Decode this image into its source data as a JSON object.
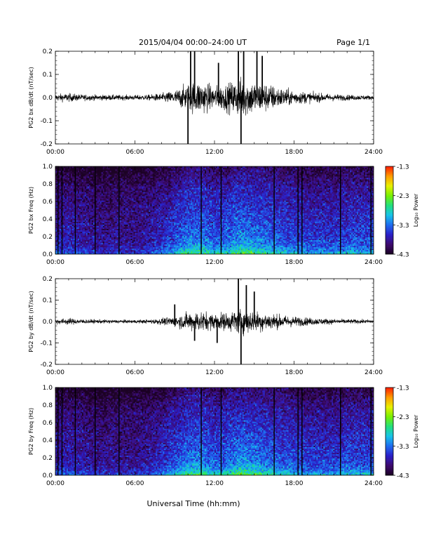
{
  "header": {
    "title": "2015/04/04   00:00–24:00 UT",
    "page": "Page 1/1"
  },
  "footer": {
    "xlabel": "Universal Time (hh:mm)"
  },
  "colors": {
    "trace": "#000000",
    "colormap": [
      "#1a0022",
      "#3d0a6e",
      "#2a1fc8",
      "#1e6cf0",
      "#17c3e8",
      "#22e07a",
      "#78f000",
      "#e8f000",
      "#ff9a00",
      "#ff1a00"
    ]
  },
  "chart_data": [
    {
      "type": "line",
      "ylabel": "PG2 bx dB/dt (nT/sec)",
      "xlim": [
        0,
        24
      ],
      "ylim": [
        -0.2,
        0.2
      ],
      "x_ticks": [
        "00:00",
        "06:00",
        "12:00",
        "18:00",
        "24:00"
      ],
      "y_ticks": [
        "-0.2",
        "-0.1",
        "0.0",
        "0.1",
        "0.2"
      ],
      "envelope": {
        "x_hours": [
          0,
          1,
          2,
          3,
          4,
          5,
          6,
          7,
          8,
          9,
          10,
          11,
          12,
          13,
          14,
          15,
          16,
          17,
          18,
          19,
          20,
          21,
          22,
          23,
          24
        ],
        "amplitude": [
          0.025,
          0.03,
          0.022,
          0.02,
          0.02,
          0.018,
          0.018,
          0.02,
          0.03,
          0.05,
          0.1,
          0.12,
          0.08,
          0.1,
          0.14,
          0.12,
          0.1,
          0.07,
          0.05,
          0.04,
          0.03,
          0.025,
          0.02,
          0.018,
          0.015
        ]
      },
      "spikes": [
        {
          "x": 10.0,
          "y": -0.21
        },
        {
          "x": 10.2,
          "y": 0.21
        },
        {
          "x": 10.5,
          "y": 0.21
        },
        {
          "x": 12.3,
          "y": 0.15
        },
        {
          "x": 13.8,
          "y": 0.21
        },
        {
          "x": 14.0,
          "y": -0.21
        },
        {
          "x": 14.2,
          "y": 0.21
        },
        {
          "x": 15.2,
          "y": 0.21
        },
        {
          "x": 15.6,
          "y": 0.18
        }
      ]
    },
    {
      "type": "heatmap",
      "ylabel": "PG2 bx Freq (Hz)",
      "xlim": [
        0,
        24
      ],
      "ylim": [
        0.0,
        1.0
      ],
      "x_ticks": [
        "00:00",
        "06:00",
        "12:00",
        "18:00",
        "24:00"
      ],
      "y_ticks": [
        "0.0",
        "0.2",
        "0.4",
        "0.6",
        "0.8",
        "1.0"
      ],
      "colorbar": {
        "label": "Log₁₀ Power",
        "range": [
          -4.3,
          -1.3
        ],
        "ticks": [
          "-1.3",
          "-2.3",
          "-3.3",
          "-4.3"
        ]
      },
      "activity": [
        0.35,
        0.4,
        0.35,
        0.3,
        0.3,
        0.3,
        0.3,
        0.35,
        0.45,
        0.55,
        0.7,
        0.7,
        0.6,
        0.65,
        0.75,
        0.7,
        0.65,
        0.6,
        0.55,
        0.5,
        0.5,
        0.5,
        0.55,
        0.55,
        0.55
      ],
      "dark_lines_hours": [
        0.2,
        0.5,
        1.5,
        3.0,
        4.8,
        11.0,
        12.5,
        16.5,
        18.3,
        18.6,
        21.5,
        23.8
      ]
    },
    {
      "type": "line",
      "ylabel": "PG2 by dB/dt (nT/sec)",
      "xlim": [
        0,
        24
      ],
      "ylim": [
        -0.2,
        0.2
      ],
      "x_ticks": [
        "00:00",
        "06:00",
        "12:00",
        "18:00",
        "24:00"
      ],
      "y_ticks": [
        "-0.2",
        "-0.1",
        "0.0",
        "0.1",
        "0.2"
      ],
      "envelope": {
        "x_hours": [
          0,
          1,
          2,
          3,
          4,
          5,
          6,
          7,
          8,
          9,
          10,
          11,
          12,
          13,
          14,
          15,
          16,
          17,
          18,
          19,
          20,
          21,
          22,
          23,
          24
        ],
        "amplitude": [
          0.02,
          0.025,
          0.018,
          0.015,
          0.015,
          0.013,
          0.013,
          0.015,
          0.025,
          0.04,
          0.07,
          0.08,
          0.06,
          0.07,
          0.1,
          0.08,
          0.07,
          0.05,
          0.04,
          0.03,
          0.025,
          0.02,
          0.018,
          0.016,
          0.014
        ]
      },
      "spikes": [
        {
          "x": 9.0,
          "y": 0.08
        },
        {
          "x": 10.5,
          "y": -0.09
        },
        {
          "x": 12.2,
          "y": -0.1
        },
        {
          "x": 13.8,
          "y": 0.21
        },
        {
          "x": 14.0,
          "y": -0.21
        },
        {
          "x": 14.4,
          "y": 0.17
        },
        {
          "x": 15.0,
          "y": 0.14
        }
      ]
    },
    {
      "type": "heatmap",
      "ylabel": "PG2 by Freq (Hz)",
      "xlim": [
        0,
        24
      ],
      "ylim": [
        0.0,
        1.0
      ],
      "x_ticks": [
        "00:00",
        "06:00",
        "12:00",
        "18:00",
        "24:00"
      ],
      "y_ticks": [
        "0.0",
        "0.2",
        "0.4",
        "0.6",
        "0.8",
        "1.0"
      ],
      "colorbar": {
        "label": "Log₁₀ Power",
        "range": [
          -4.3,
          -1.3
        ],
        "ticks": [
          "-1.3",
          "-2.3",
          "-3.3",
          "-4.3"
        ]
      },
      "activity": [
        0.35,
        0.4,
        0.35,
        0.3,
        0.3,
        0.3,
        0.3,
        0.35,
        0.45,
        0.55,
        0.7,
        0.7,
        0.6,
        0.65,
        0.75,
        0.7,
        0.65,
        0.6,
        0.55,
        0.5,
        0.5,
        0.5,
        0.55,
        0.55,
        0.55
      ],
      "dark_lines_hours": [
        0.2,
        0.5,
        1.5,
        3.0,
        4.8,
        11.0,
        12.5,
        16.5,
        18.3,
        18.6,
        21.5,
        23.8
      ]
    }
  ]
}
